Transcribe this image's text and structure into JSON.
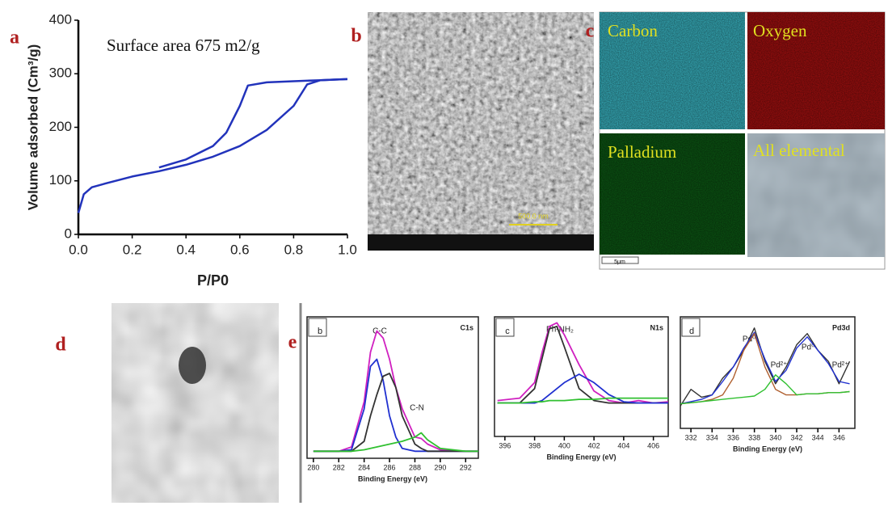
{
  "chart_data": [
    {
      "type": "line",
      "panel_label": "a",
      "annotation": "Surface area 675 m2/g",
      "x_label": "P/P0",
      "y_label": "Volume adsorbed (Cm³/g)",
      "xlim": [
        0,
        1
      ],
      "ylim": [
        0,
        400
      ],
      "xticks": [
        {
          "value": 0,
          "label": "0.0"
        },
        {
          "value": 0.2,
          "label": "0.2"
        },
        {
          "value": 0.4,
          "label": "0.4"
        },
        {
          "value": 0.6,
          "label": "0.6"
        },
        {
          "value": 0.8,
          "label": "0.8"
        },
        {
          "value": 1,
          "label": "1.0"
        }
      ],
      "yticks": [
        0,
        100,
        200,
        300,
        400
      ],
      "series": [
        {
          "color": "#2233bb",
          "x": [
            0,
            0.02,
            0.05,
            0.1,
            0.2,
            0.3,
            0.4,
            0.5,
            0.6,
            0.7,
            0.8,
            0.85,
            0.9,
            0.95,
            1.0
          ],
          "values": [
            40,
            75,
            88,
            95,
            108,
            118,
            130,
            145,
            165,
            195,
            240,
            280,
            288,
            289,
            290
          ]
        },
        {
          "color": "#2233bb",
          "x": [
            1.0,
            0.9,
            0.8,
            0.7,
            0.63,
            0.6,
            0.55,
            0.5,
            0.4,
            0.3
          ],
          "values": [
            290,
            288,
            286,
            284,
            278,
            240,
            190,
            165,
            140,
            125
          ]
        }
      ]
    },
    {
      "type": "line",
      "panel_label": "b",
      "title": "C1s",
      "x_label": "Binding Energy (eV)",
      "xlim": [
        279.5,
        293
      ],
      "ylim": [
        0,
        100
      ],
      "xticks": [
        280,
        282,
        284,
        286,
        288,
        290,
        292
      ],
      "x": [
        280,
        282,
        283,
        284,
        284.5,
        285,
        285.5,
        286,
        286.5,
        287,
        288,
        288.5,
        289,
        290,
        292,
        293
      ],
      "annotations": [
        "C-C",
        "C-N"
      ],
      "series": [
        {
          "color": "#d020c0",
          "values": [
            5,
            5,
            8,
            40,
            75,
            90,
            85,
            70,
            50,
            35,
            15,
            14,
            10,
            6,
            5,
            5
          ]
        },
        {
          "color": "#2030d0",
          "values": [
            5,
            5,
            6,
            35,
            65,
            70,
            55,
            30,
            15,
            7,
            5,
            5,
            5,
            5,
            5,
            5
          ]
        },
        {
          "color": "#333333",
          "values": [
            5,
            5,
            5,
            12,
            30,
            45,
            58,
            60,
            50,
            30,
            10,
            7,
            5,
            5,
            5,
            5
          ]
        },
        {
          "color": "#30c030",
          "values": [
            5,
            5,
            5,
            6,
            7,
            8,
            9,
            10,
            11,
            12,
            15,
            18,
            13,
            7,
            5,
            5
          ]
        }
      ]
    },
    {
      "type": "line",
      "panel_label": "c",
      "title": "N1s",
      "x_label": "Binding Energy (eV)",
      "xlim": [
        395.3,
        407
      ],
      "ylim": [
        0,
        100
      ],
      "xticks": [
        396,
        398,
        400,
        402,
        404,
        406
      ],
      "x": [
        395.5,
        397,
        398,
        398.5,
        399,
        399.5,
        400,
        401,
        402,
        403,
        404,
        405,
        406,
        407
      ],
      "annotations": [
        "Ph-NH₂"
      ],
      "series": [
        {
          "color": "#d020c0",
          "values": [
            30,
            32,
            45,
            70,
            92,
            95,
            85,
            60,
            38,
            30,
            28,
            30,
            28,
            29
          ]
        },
        {
          "color": "#333333",
          "values": [
            28,
            28,
            40,
            65,
            90,
            92,
            75,
            40,
            30,
            28,
            28,
            28,
            28,
            28
          ]
        },
        {
          "color": "#2030d0",
          "values": [
            28,
            28,
            28,
            30,
            35,
            40,
            45,
            52,
            45,
            35,
            29,
            28,
            28,
            28
          ]
        },
        {
          "color": "#30c030",
          "values": [
            28,
            28,
            29,
            29,
            30,
            30,
            30,
            31,
            31,
            32,
            32,
            32,
            32,
            32
          ]
        }
      ]
    },
    {
      "type": "line",
      "panel_label": "d",
      "title": "Pd3d",
      "x_label": "Binding Energy (eV)",
      "xlim": [
        331,
        347.5
      ],
      "ylim": [
        0,
        100
      ],
      "xticks": [
        332,
        334,
        336,
        338,
        340,
        342,
        344,
        346
      ],
      "x": [
        331,
        332,
        333,
        334,
        335,
        336,
        337,
        338,
        339,
        340,
        341,
        342,
        343,
        344,
        345,
        346,
        347
      ],
      "annotations": [
        "Pd⁰",
        "Pd²⁺",
        "Pd⁰",
        "Pd²⁺"
      ],
      "series": [
        {
          "color": "#333333",
          "values": [
            20,
            35,
            28,
            30,
            45,
            55,
            70,
            90,
            60,
            40,
            55,
            75,
            85,
            70,
            60,
            40,
            60
          ]
        },
        {
          "color": "#2030d0",
          "values": [
            22,
            24,
            26,
            30,
            42,
            55,
            72,
            86,
            62,
            42,
            52,
            72,
            82,
            70,
            58,
            42,
            40
          ]
        },
        {
          "color": "#b06030",
          "values": [
            22,
            23,
            24,
            26,
            30,
            45,
            70,
            85,
            55,
            35,
            30,
            30,
            31,
            31,
            32,
            32,
            33
          ]
        },
        {
          "color": "#30c030",
          "values": [
            22,
            23,
            24,
            25,
            26,
            27,
            28,
            29,
            35,
            48,
            40,
            30,
            31,
            31,
            32,
            32,
            33
          ]
        }
      ]
    }
  ],
  "images": {
    "sem": {
      "label": "b",
      "scale_bar": "500.0 nm"
    },
    "eds": {
      "label": "c",
      "maps": [
        "Carbon",
        "Oxygen",
        "Palladium",
        "All elemental"
      ],
      "scale_bar": "5μm"
    },
    "tem": {
      "label": "d"
    },
    "xps_label": "e"
  }
}
